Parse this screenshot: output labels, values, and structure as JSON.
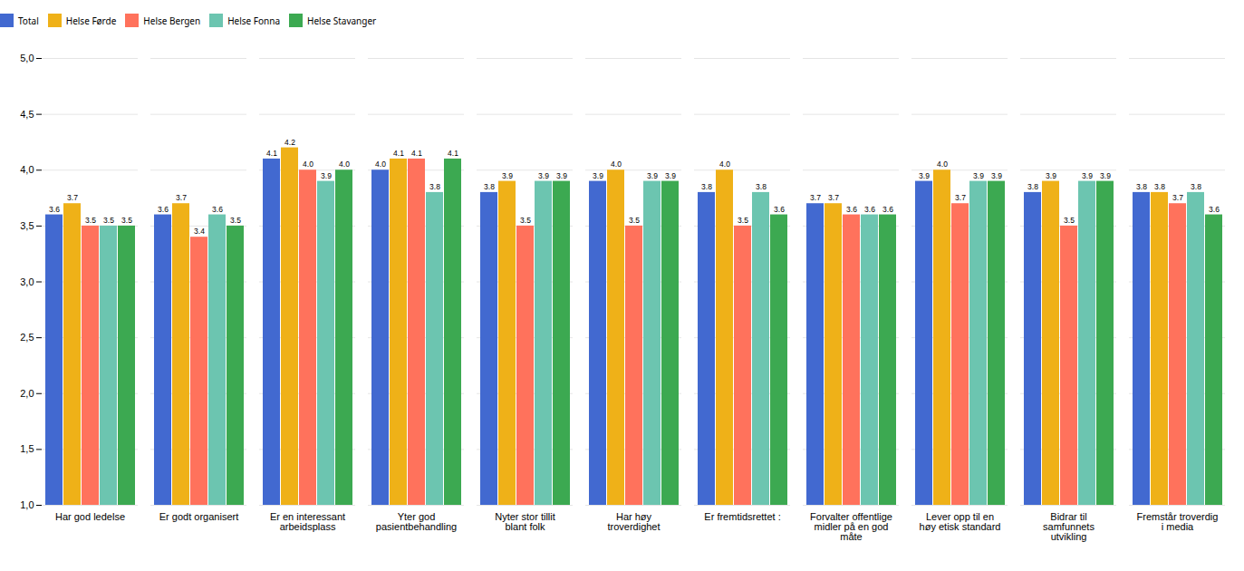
{
  "chart_data": {
    "type": "bar",
    "categories": [
      "Har god ledelse",
      "Er godt organisert",
      "Er en interessant\narbeidsplass",
      "Yter god\npasientbehandling",
      "Nyter stor tillit\nblant folk",
      "Har høy\ntroverdighet",
      "Er fremtidsrettet :",
      "Forvalter offentlige\nmidler på en god\nmåte",
      "Lever opp til en\nhøy etisk standard",
      "Bidrar til\nsamfunnets\nutvikling",
      "Fremstår troverdig\ni media"
    ],
    "series": [
      {
        "name": "Total",
        "values": [
          3.6,
          3.6,
          4.1,
          4.0,
          3.8,
          3.9,
          3.8,
          3.7,
          3.9,
          3.8,
          3.8
        ],
        "value_labels": [
          "3.6",
          "3.6",
          "4.1",
          "4.0",
          "3.8",
          "3.9",
          "3.8",
          "3.7",
          "3.9",
          "3.8",
          "3.8"
        ]
      },
      {
        "name": "Helse Førde",
        "values": [
          3.7,
          3.7,
          4.2,
          4.1,
          3.9,
          4.0,
          4.0,
          3.7,
          4.0,
          3.9,
          3.8
        ],
        "value_labels": [
          "3.7",
          "3.7",
          "4.2",
          "4.1",
          "3.9",
          "4.0",
          "4.0",
          "3.7",
          "4.0",
          "3.9",
          "3.8"
        ]
      },
      {
        "name": "Helse Bergen",
        "values": [
          3.5,
          3.4,
          4.0,
          4.1,
          3.5,
          3.5,
          3.5,
          3.6,
          3.7,
          3.5,
          3.7
        ],
        "value_labels": [
          "3.5",
          "3.4",
          "4.0",
          "4.1",
          "3.5",
          "3.5",
          "3.5",
          "3.6",
          "3.7",
          "3.5",
          "3.7"
        ]
      },
      {
        "name": "Helse Fonna",
        "values": [
          3.5,
          3.6,
          3.9,
          3.8,
          3.9,
          3.9,
          3.8,
          3.6,
          3.9,
          3.9,
          3.8
        ],
        "value_labels": [
          "3.5",
          "3.6",
          "3.9",
          "3.8",
          "3.9",
          "3.9",
          "3.8",
          "3.6",
          "3.9",
          "3.9",
          "3.8"
        ]
      },
      {
        "name": "Helse Stavanger",
        "values": [
          3.5,
          3.5,
          4.0,
          4.1,
          3.9,
          3.9,
          3.6,
          3.6,
          3.9,
          3.9,
          3.6
        ],
        "value_labels": [
          "3.5",
          "3.5",
          "4.0",
          "4.1",
          "3.9",
          "3.9",
          "3.6",
          "3.6",
          "3.9",
          "3.9",
          "3.6"
        ]
      }
    ],
    "ylim": [
      1.0,
      5.0
    ],
    "yticks": [
      {
        "value": 1.0,
        "label": "1,0"
      },
      {
        "value": 1.5,
        "label": "1,5"
      },
      {
        "value": 2.0,
        "label": "2,0"
      },
      {
        "value": 2.5,
        "label": "2,5"
      },
      {
        "value": 3.0,
        "label": "3,0"
      },
      {
        "value": 3.5,
        "label": "3,5"
      },
      {
        "value": 4.0,
        "label": "4,0"
      },
      {
        "value": 4.5,
        "label": "4,5"
      },
      {
        "value": 5.0,
        "label": "5,0"
      }
    ],
    "grid": true,
    "legend": "top",
    "data_labels": true
  }
}
